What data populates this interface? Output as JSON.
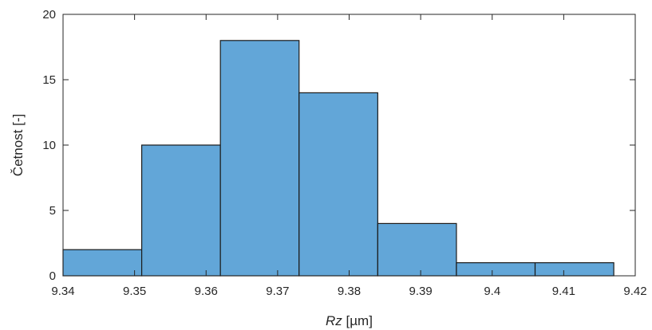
{
  "chart_data": {
    "type": "bar",
    "subtype": "histogram",
    "bin_edges": [
      9.34,
      9.351,
      9.362,
      9.373,
      9.384,
      9.395,
      9.406,
      9.417
    ],
    "values": [
      2,
      10,
      18,
      14,
      4,
      1,
      1
    ],
    "xlabel": {
      "italic": "Rz",
      "rest": " [µm]"
    },
    "ylabel": "Četnost [-]",
    "xlim": [
      9.34,
      9.42
    ],
    "ylim": [
      0,
      20
    ],
    "xticks": [
      9.34,
      9.35,
      9.36,
      9.37,
      9.38,
      9.39,
      9.4,
      9.41,
      9.42
    ],
    "xtick_labels": [
      "9.34",
      "9.35",
      "9.36",
      "9.37",
      "9.38",
      "9.39",
      "9.4",
      "9.41",
      "9.42"
    ],
    "yticks": [
      0,
      5,
      10,
      15,
      20
    ],
    "ytick_labels": [
      "0",
      "5",
      "10",
      "15",
      "20"
    ],
    "grid": false,
    "bar_color": "#62a6d8",
    "edge_color": "#1a1a1a",
    "axis_color": "#262626"
  }
}
